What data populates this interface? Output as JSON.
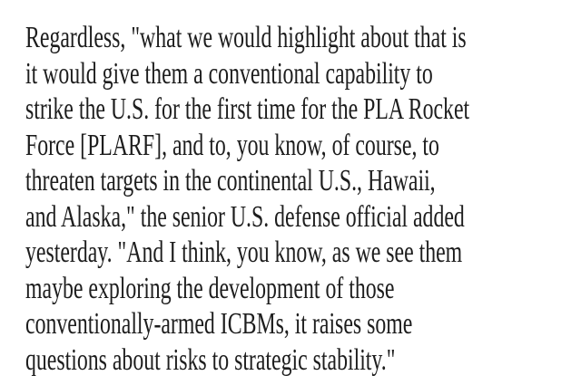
{
  "page": {
    "background_color": "#ffffff",
    "text_color": "#1d1d1d"
  },
  "article": {
    "paragraph": "Regardless, \"what we would highlight about that is\nit would give them a conventional capability to\nstrike the U.S. for the first time for the PLA Rocket\nForce [PLARF], and to, you know, of course, to\nthreaten targets in the continental U.S., Hawaii,\nand Alaska,\" the senior U.S. defense official added\nyesterday. \"And I think, you know, as we see them\nmaybe exploring the development of those\nconventionally-armed ICBMs, it raises some\nquestions about risks to strategic stability.\""
  }
}
